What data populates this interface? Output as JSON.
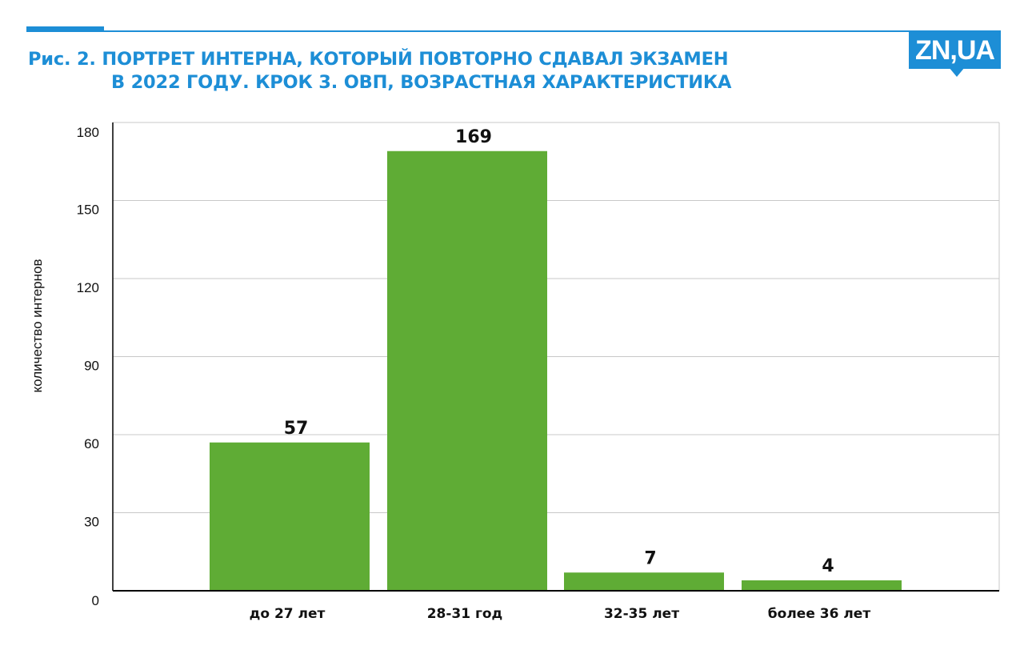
{
  "header": {
    "title_line1": "Рис. 2. ПОРТРЕТ ИНТЕРНА, КОТОРЫЙ ПОВТОРНО СДАВАЛ ЭКЗАМЕН",
    "title_line2": "В 2022 ГОДУ. КРОК 3. ОВП, ВОЗРАСТНАЯ ХАРАКТЕРИСТИКА",
    "logo_text": "ZN,UA"
  },
  "colors": {
    "accent": "#1d8ed6",
    "bar": "#5fac35",
    "grid": "#c8c8c8",
    "axis": "#000000"
  },
  "chart_data": {
    "type": "bar",
    "title": "Рис. 2. ПОРТРЕТ ИНТЕРНА, КОТОРЫЙ ПОВТОРНО СДАВАЛ ЭКЗАМЕН В 2022 ГОДУ. КРОК 3. ОВП, ВОЗРАСТНАЯ ХАРАКТЕРИСТИКА",
    "categories": [
      "до 27 лет",
      "28-31 год",
      "32-35 лет",
      "более 36 лет"
    ],
    "values": [
      57,
      169,
      7,
      4
    ],
    "data_labels": [
      "57",
      "169",
      "7",
      "4"
    ],
    "xlabel": "",
    "ylabel": "количество интернов",
    "ylim": [
      0,
      180
    ],
    "yticks": [
      0,
      30,
      60,
      90,
      120,
      150,
      180
    ],
    "grid": true,
    "legend": "none"
  }
}
